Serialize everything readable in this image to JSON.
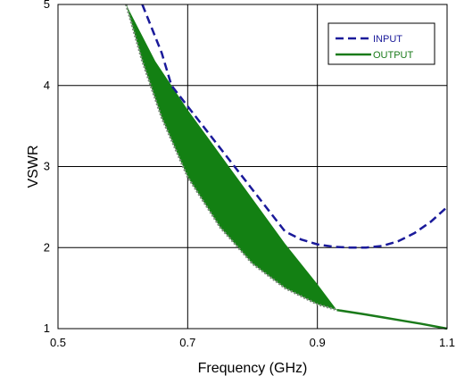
{
  "chart_data": {
    "type": "line",
    "title": "",
    "xlabel": "Frequency (GHz)",
    "ylabel": "VSWR",
    "xlim": [
      0.5,
      1.1
    ],
    "ylim": [
      1,
      5
    ],
    "x_ticks": [
      "0.5",
      "0.7",
      "0.9",
      "1.1"
    ],
    "y_ticks": [
      "1",
      "2",
      "3",
      "4",
      "5"
    ],
    "grid": true,
    "legend_position": "top-right",
    "series": [
      {
        "name": "INPUT",
        "style": "dashed",
        "color": "#1a1a9a",
        "x": [
          0.63,
          0.64,
          0.66,
          0.675,
          0.85,
          0.875,
          0.9,
          0.925,
          0.95,
          0.975,
          1.0,
          1.025,
          1.05,
          1.075,
          1.1
        ],
        "y": [
          5.0,
          4.8,
          4.4,
          4.0,
          2.2,
          2.1,
          2.04,
          2.01,
          2.0,
          2.0,
          2.02,
          2.08,
          2.18,
          2.32,
          2.5
        ]
      },
      {
        "name": "OUTPUT",
        "style": "solid",
        "color": "#1a7a1a",
        "x": [
          0.93,
          0.97,
          1.0,
          1.03,
          1.06,
          1.1
        ],
        "y": [
          1.23,
          1.18,
          1.14,
          1.1,
          1.06,
          1.0
        ]
      }
    ],
    "band": {
      "color": "#138013",
      "upper": {
        "x": [
          0.605,
          0.65,
          0.7,
          0.75,
          0.8,
          0.85,
          0.9,
          0.93
        ],
        "y": [
          5.0,
          4.3,
          3.7,
          3.15,
          2.6,
          2.05,
          1.55,
          1.23
        ]
      },
      "lower": {
        "x": [
          0.605,
          0.63,
          0.66,
          0.7,
          0.75,
          0.8,
          0.85,
          0.9,
          0.93
        ],
        "y": [
          5.0,
          4.3,
          3.6,
          2.87,
          2.25,
          1.8,
          1.5,
          1.3,
          1.23
        ]
      }
    }
  },
  "colors": {
    "input": "#1a1a9a",
    "output": "#1a7a1a",
    "band": "#138013"
  }
}
